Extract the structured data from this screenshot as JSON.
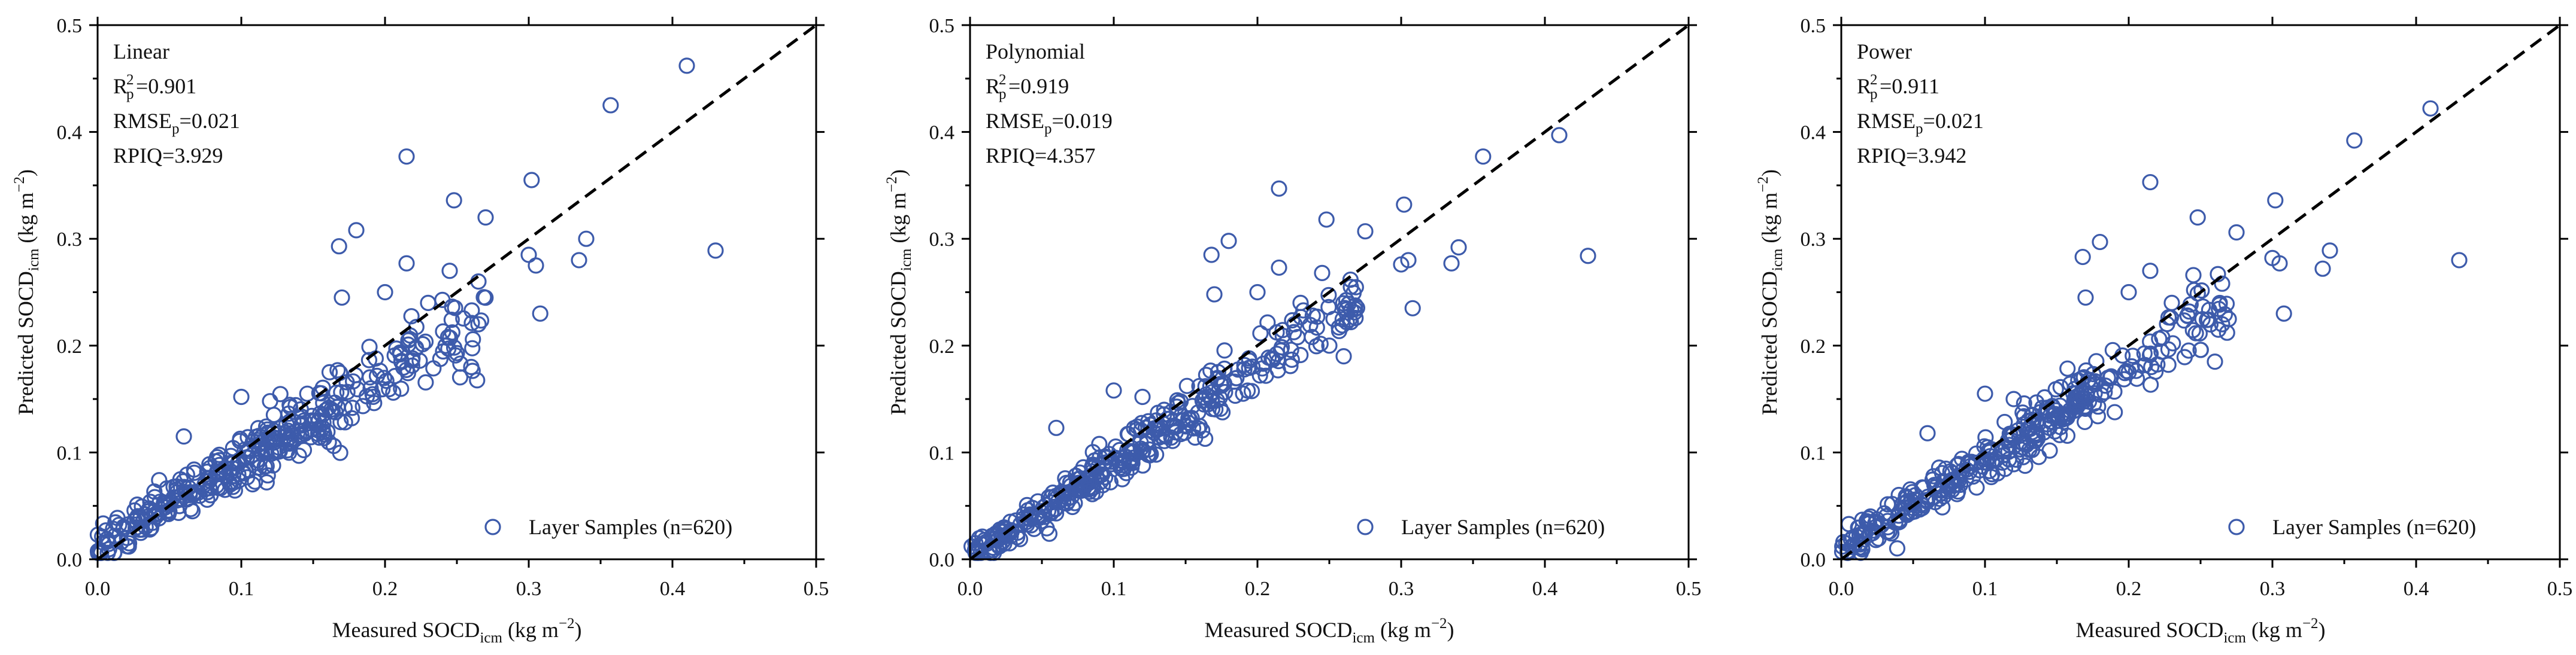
{
  "marker_color": "#3d5bab",
  "chart_data": [
    {
      "type": "scatter",
      "title": "Linear",
      "stats": [
        {
          "base": "R",
          "sup": "2",
          "sub": "p",
          "value": "=0.901"
        },
        {
          "base": "RMSE",
          "sub": "p",
          "value": "=0.021"
        },
        {
          "base": "RPIQ",
          "value": "=3.929"
        }
      ],
      "xlabel": {
        "pre": "Measured SOCD",
        "sub": "icm",
        "post": " (kg m",
        "sup": "−2",
        "end": ")"
      },
      "ylabel": {
        "pre": "Predicted SOCD",
        "sub": "icm",
        "post": " (kg m",
        "sup": "−2",
        "end": ")"
      },
      "xlim": [
        0,
        0.5
      ],
      "ylim": [
        0,
        0.5
      ],
      "xticks": [
        "0.0",
        "0.1",
        "0.2",
        "0.3",
        "0.4",
        "0.5"
      ],
      "yticks": [
        "0.0",
        "0.1",
        "0.2",
        "0.3",
        "0.4",
        "0.5"
      ],
      "reference_line": "1:1",
      "legend": "Layer Samples (n=620)",
      "legend_position": "bottom-right",
      "slope": 0.8,
      "intercept": 0.012,
      "noise": 0.014,
      "outliers": [
        [
          0.41,
          0.462
        ],
        [
          0.357,
          0.425
        ],
        [
          0.215,
          0.377
        ],
        [
          0.43,
          0.289
        ],
        [
          0.302,
          0.355
        ],
        [
          0.248,
          0.336
        ],
        [
          0.27,
          0.32
        ],
        [
          0.34,
          0.3
        ],
        [
          0.305,
          0.275
        ],
        [
          0.335,
          0.28
        ],
        [
          0.308,
          0.23
        ],
        [
          0.18,
          0.308
        ],
        [
          0.168,
          0.293
        ],
        [
          0.26,
          0.18
        ],
        [
          0.25,
          0.193
        ],
        [
          0.17,
          0.245
        ],
        [
          0.215,
          0.277
        ],
        [
          0.3,
          0.285
        ],
        [
          0.265,
          0.26
        ],
        [
          0.245,
          0.27
        ],
        [
          0.06,
          0.115
        ],
        [
          0.1,
          0.152
        ],
        [
          0.12,
          0.148
        ],
        [
          0.19,
          0.16
        ],
        [
          0.265,
          0.22
        ],
        [
          0.23,
          0.24
        ],
        [
          0.2,
          0.25
        ]
      ]
    },
    {
      "type": "scatter",
      "title": "Polynomial",
      "stats": [
        {
          "base": "R",
          "sup": "2",
          "sub": "p",
          "value": "=0.919"
        },
        {
          "base": "RMSE",
          "sub": "p",
          "value": "=0.019"
        },
        {
          "base": "RPIQ",
          "value": "=4.357"
        }
      ],
      "xlabel": {
        "pre": "Measured SOCD",
        "sub": "icm",
        "post": " (kg m",
        "sup": "−2",
        "end": ")"
      },
      "ylabel": {
        "pre": "Predicted SOCD",
        "sub": "icm",
        "post": " (kg m",
        "sup": "−2",
        "end": ")"
      },
      "xlim": [
        0,
        0.5
      ],
      "ylim": [
        0,
        0.5
      ],
      "xticks": [
        "0.0",
        "0.1",
        "0.2",
        "0.3",
        "0.4",
        "0.5"
      ],
      "yticks": [
        "0.0",
        "0.1",
        "0.2",
        "0.3",
        "0.4",
        "0.5"
      ],
      "reference_line": "1:1",
      "legend": "Layer Samples (n=620)",
      "legend_position": "bottom-right",
      "slope": 0.88,
      "intercept": 0.003,
      "noise": 0.012,
      "outliers": [
        [
          0.41,
          0.397
        ],
        [
          0.357,
          0.377
        ],
        [
          0.215,
          0.347
        ],
        [
          0.43,
          0.284
        ],
        [
          0.302,
          0.332
        ],
        [
          0.248,
          0.318
        ],
        [
          0.275,
          0.307
        ],
        [
          0.34,
          0.292
        ],
        [
          0.305,
          0.28
        ],
        [
          0.335,
          0.277
        ],
        [
          0.308,
          0.235
        ],
        [
          0.18,
          0.298
        ],
        [
          0.168,
          0.285
        ],
        [
          0.26,
          0.19
        ],
        [
          0.25,
          0.2
        ],
        [
          0.17,
          0.248
        ],
        [
          0.215,
          0.273
        ],
        [
          0.3,
          0.276
        ],
        [
          0.265,
          0.255
        ],
        [
          0.245,
          0.268
        ],
        [
          0.06,
          0.123
        ],
        [
          0.1,
          0.158
        ],
        [
          0.12,
          0.152
        ],
        [
          0.19,
          0.155
        ],
        [
          0.265,
          0.222
        ],
        [
          0.23,
          0.24
        ],
        [
          0.2,
          0.25
        ]
      ]
    },
    {
      "type": "scatter",
      "title": "Power",
      "stats": [
        {
          "base": "R",
          "sup": "2",
          "sub": "p",
          "value": "=0.911"
        },
        {
          "base": "RMSE",
          "sub": "p",
          "value": "=0.021"
        },
        {
          "base": "RPIQ",
          "value": "=3.942"
        }
      ],
      "xlabel": {
        "pre": "Measured SOCD",
        "sub": "icm",
        "post": " (kg m",
        "sup": "−2",
        "end": ")"
      },
      "ylabel": {
        "pre": "Predicted SOCD",
        "sub": "icm",
        "post": " (kg m",
        "sup": "−2",
        "end": ")"
      },
      "xlim": [
        0,
        0.5
      ],
      "ylim": [
        0,
        0.5
      ],
      "xticks": [
        "0.0",
        "0.1",
        "0.2",
        "0.3",
        "0.4",
        "0.5"
      ],
      "yticks": [
        "0.0",
        "0.1",
        "0.2",
        "0.3",
        "0.4",
        "0.5"
      ],
      "reference_line": "1:1",
      "legend": "Layer Samples (n=620)",
      "legend_position": "bottom-right",
      "slope": 0.85,
      "intercept": 0.008,
      "noise": 0.013,
      "outliers": [
        [
          0.41,
          0.422
        ],
        [
          0.357,
          0.392
        ],
        [
          0.215,
          0.353
        ],
        [
          0.43,
          0.28
        ],
        [
          0.302,
          0.336
        ],
        [
          0.248,
          0.32
        ],
        [
          0.275,
          0.306
        ],
        [
          0.34,
          0.289
        ],
        [
          0.305,
          0.277
        ],
        [
          0.335,
          0.272
        ],
        [
          0.308,
          0.23
        ],
        [
          0.18,
          0.297
        ],
        [
          0.168,
          0.283
        ],
        [
          0.26,
          0.185
        ],
        [
          0.25,
          0.196
        ],
        [
          0.17,
          0.245
        ],
        [
          0.215,
          0.27
        ],
        [
          0.3,
          0.282
        ],
        [
          0.265,
          0.258
        ],
        [
          0.245,
          0.266
        ],
        [
          0.06,
          0.118
        ],
        [
          0.1,
          0.155
        ],
        [
          0.12,
          0.15
        ],
        [
          0.19,
          0.157
        ],
        [
          0.265,
          0.22
        ],
        [
          0.23,
          0.24
        ],
        [
          0.2,
          0.25
        ]
      ]
    }
  ]
}
